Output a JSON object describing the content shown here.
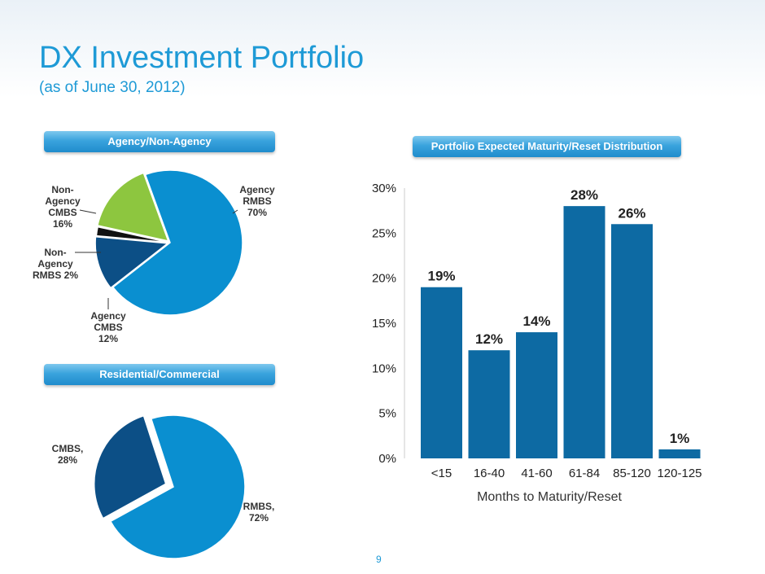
{
  "page": {
    "title": "DX Investment Portfolio",
    "subtitle": "(as of June 30, 2012)",
    "page_number": "9"
  },
  "sections": {
    "agency": "Agency/Non-Agency",
    "residential": "Residential/Commercial",
    "maturity": "Portfolio Expected Maturity/Reset Distribution"
  },
  "chart_data": [
    {
      "type": "pie",
      "title": "Agency/Non-Agency",
      "slices": [
        {
          "label_lines": [
            "Agency",
            "RMBS",
            "70%"
          ],
          "value": 70,
          "color": "#0a8fd0"
        },
        {
          "label_lines": [
            "Agency",
            "CMBS",
            "12%"
          ],
          "value": 12,
          "color": "#0c4f86"
        },
        {
          "label_lines": [
            "Non-",
            "Agency",
            "RMBS 2%"
          ],
          "value": 2,
          "color": "#111111"
        },
        {
          "label_lines": [
            "Non-",
            "Agency",
            "CMBS",
            "16%"
          ],
          "value": 16,
          "color": "#8dc63f"
        }
      ]
    },
    {
      "type": "pie",
      "title": "Residential/Commercial",
      "slices": [
        {
          "label_lines": [
            "RMBS,",
            "72%"
          ],
          "value": 72,
          "color": "#0a8fd0"
        },
        {
          "label_lines": [
            "CMBS,",
            "28%"
          ],
          "value": 28,
          "color": "#0c4f86"
        }
      ]
    },
    {
      "type": "bar",
      "title": "Portfolio Expected Maturity/Reset Distribution",
      "xlabel": "Months to Maturity/Reset",
      "ylabel": "",
      "categories": [
        "<15",
        "16-40",
        "41-60",
        "61-84",
        "85-120",
        "120-125"
      ],
      "values": [
        19,
        12,
        14,
        28,
        26,
        1
      ],
      "value_labels": [
        "19%",
        "12%",
        "14%",
        "28%",
        "26%",
        "1%"
      ],
      "ylim": [
        0,
        30
      ],
      "yticks": [
        "0%",
        "5%",
        "10%",
        "15%",
        "20%",
        "25%",
        "30%"
      ],
      "bar_color": "#0d6aa3",
      "grid": false
    }
  ]
}
